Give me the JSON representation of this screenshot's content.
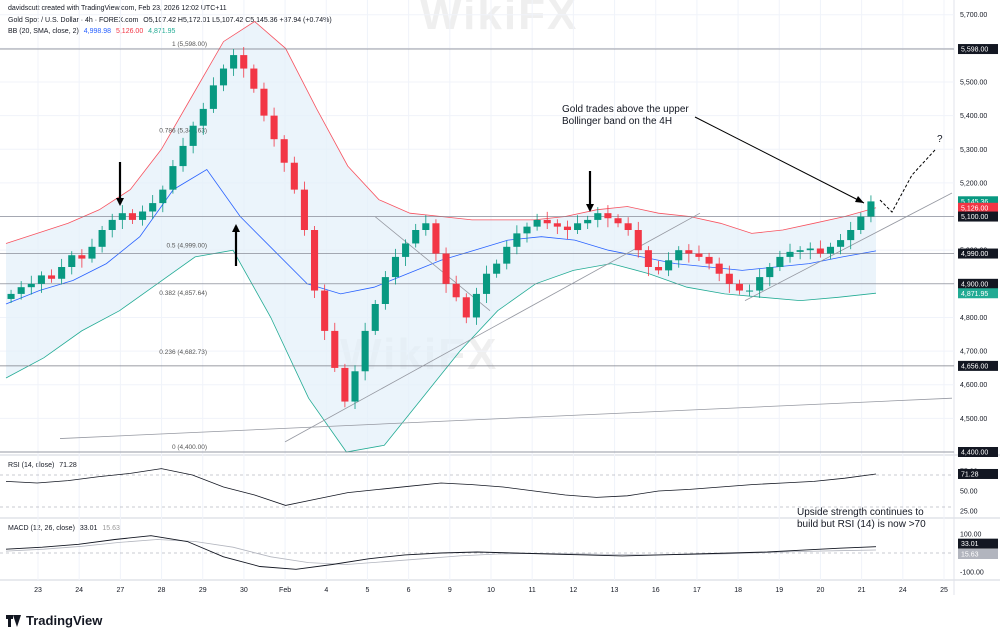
{
  "header": {
    "credit": "davidscutt created with TradingView.com, Feb 23, 2026 12:02 UTC+11",
    "symbol": "Gold Spot / U.S. Dollar · 4h · FOREX.com",
    "ohlc": "O5,107.42  H5,172.01  L5,107.42  C5,145.36  +37.94 (+0.74%)",
    "bb_label": "BB (20, SMA, close, 2)",
    "bb_basis": "4,998.98",
    "bb_upper": "5,126.00",
    "bb_lower": "4,871.95",
    "rsi_label": "RSI (14, close)",
    "rsi_value": "71.28",
    "macd_label": "MACD (12, 26, close)",
    "macd_value": "33.01",
    "macd_signal": "15.63"
  },
  "brand": "TradingView",
  "watermark": "WikiFX",
  "colors": {
    "up": "#089981",
    "down": "#f23645",
    "bb_upper": "#f7525f",
    "bb_basis": "#2962ff",
    "bb_lower": "#22ab94",
    "bb_fill": "#e3effa",
    "grid": "#f0f3fa",
    "line": "#787b86"
  },
  "chart_data": [
    {
      "type": "candlestick",
      "title": "",
      "x_labels": [
        "23",
        "24",
        "27",
        "28",
        "29",
        "30",
        "Feb",
        "4",
        "5",
        "6",
        "9",
        "10",
        "11",
        "12",
        "13",
        "16",
        "17",
        "18",
        "19",
        "20",
        "21",
        "24",
        "25"
      ],
      "y_ticks": [
        "5,700.00",
        "5,600.00",
        "5,500.00",
        "5,400.00",
        "5,300.00",
        "5,200.00",
        "5,100.00",
        "5,000.00",
        "4,900.00",
        "4,800.00",
        "4,700.00",
        "4,600.00",
        "4,500.00",
        "4,400.00"
      ],
      "ylim": [
        4400,
        5720
      ],
      "price_tags": [
        {
          "label": "5,598.00",
          "kind": "level"
        },
        {
          "label": "5,145.36",
          "kind": "price"
        },
        {
          "label": "5,126.00",
          "kind": "upper"
        },
        {
          "label": "5,100.00",
          "kind": "level"
        },
        {
          "label": "4,990.00",
          "kind": "level"
        },
        {
          "label": "4,900.00",
          "kind": "level"
        },
        {
          "label": "4,871.95",
          "kind": "lower"
        },
        {
          "label": "4,656.00",
          "kind": "level"
        },
        {
          "label": "4,400.00",
          "kind": "level"
        }
      ],
      "fib_levels": [
        {
          "label": "1 (5,598.00)",
          "price": 5598
        },
        {
          "label": "0.786 (5,341.63)",
          "price": 5341.6
        },
        {
          "label": "0.5 (4,999.00)",
          "price": 4999
        },
        {
          "label": "0.382 (4,857.64)",
          "price": 4857.6
        },
        {
          "label": "0.236 (4,682.73)",
          "price": 4682.7
        },
        {
          "label": "0 (4,400.00)",
          "price": 4400
        }
      ],
      "annotations": [
        {
          "text": "Gold trades above the upper",
          "line": 1
        },
        {
          "text": "Bollinger  band on the 4H",
          "line": 2
        },
        {
          "text": "?",
          "line": 0
        }
      ],
      "closes": [
        4870,
        4890,
        4900,
        4925,
        4915,
        4950,
        4985,
        4975,
        5010,
        5060,
        5090,
        5110,
        5090,
        5115,
        5140,
        5180,
        5250,
        5310,
        5370,
        5420,
        5490,
        5540,
        5580,
        5540,
        5480,
        5400,
        5330,
        5260,
        5180,
        5060,
        4880,
        4760,
        4650,
        4550,
        4640,
        4760,
        4840,
        4920,
        4980,
        5020,
        5060,
        5080,
        4990,
        4900,
        4860,
        4800,
        4870,
        4930,
        4960,
        5010,
        5050,
        5070,
        5090,
        5080,
        5070,
        5060,
        5080,
        5090,
        5110,
        5095,
        5080,
        5060,
        5000,
        4950,
        4940,
        4970,
        5000,
        4990,
        4980,
        4960,
        4930,
        4900,
        4880,
        4880,
        4920,
        4950,
        4980,
        4995,
        5000,
        5005,
        4990,
        5010,
        5030,
        5060,
        5100,
        5145
      ],
      "bb_upper_curve": [
        5020,
        5050,
        5080,
        5120,
        5180,
        5300,
        5460,
        5620,
        5680,
        5600,
        5420,
        5250,
        5150,
        5110,
        5100,
        5090,
        5090,
        5090,
        5100,
        5120,
        5130,
        5110,
        5100,
        5080,
        5050,
        5060,
        5080,
        5100,
        5126
      ],
      "bb_basis_curve": [
        4840,
        4880,
        4910,
        4960,
        5040,
        5180,
        5240,
        5100,
        5000,
        4900,
        4870,
        4890,
        4930,
        4970,
        5000,
        5030,
        5040,
        5030,
        5000,
        4980,
        4960,
        4950,
        4940,
        4950,
        4960,
        4980,
        4998
      ],
      "bb_lower_curve": [
        4620,
        4680,
        4760,
        4820,
        4900,
        4980,
        5000,
        4800,
        4560,
        4400,
        4420,
        4560,
        4700,
        4820,
        4900,
        4940,
        4960,
        4930,
        4890,
        4870,
        4860,
        4850,
        4860,
        4872
      ]
    },
    {
      "type": "line",
      "title": "",
      "series_label": "RSI (14, close)",
      "y_ticks": [
        "75.00",
        "50.00",
        "25.00"
      ],
      "ylim": [
        20,
        85
      ],
      "values": [
        62,
        60,
        63,
        68,
        72,
        78,
        70,
        55,
        45,
        32,
        40,
        48,
        52,
        56,
        60,
        58,
        55,
        50,
        45,
        42,
        44,
        50,
        52,
        55,
        58,
        60,
        62,
        66,
        71.28
      ]
    },
    {
      "type": "line",
      "title": "",
      "series_label": "MACD (12, 26, close)",
      "y_ticks": [
        "100.00",
        "0.00",
        "-100.00"
      ],
      "ylim": [
        -130,
        130
      ],
      "macd": [
        20,
        30,
        45,
        70,
        90,
        60,
        -20,
        -70,
        -85,
        -60,
        -30,
        -10,
        0,
        5,
        0,
        -5,
        -10,
        -15,
        -10,
        -5,
        0,
        5,
        15,
        25,
        33.01
      ],
      "signal": [
        10,
        20,
        35,
        55,
        70,
        60,
        30,
        -20,
        -50,
        -60,
        -45,
        -30,
        -15,
        -5,
        -2,
        -4,
        -8,
        -10,
        -8,
        -4,
        2,
        8,
        12,
        15.63
      ]
    }
  ],
  "rsi_note": [
    "Upside strength continues to",
    "build but RSI (14) is now >70"
  ]
}
